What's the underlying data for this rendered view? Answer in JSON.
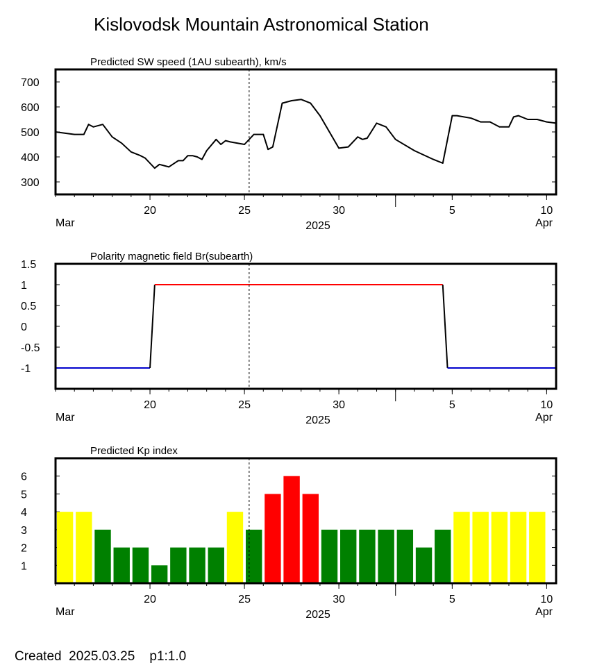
{
  "title": "Kislovodsk Mountain Astronomical Station",
  "footer": {
    "created_label": "Created",
    "date": "2025.03.25",
    "page": "p1:1.0"
  },
  "x_axis": {
    "year_label": "2025",
    "month_start_label": "Mar",
    "month_end_label": "Apr",
    "range": [
      "2025-03-15",
      "2025-04-10T12:00"
    ],
    "major_ticks": [
      {
        "date": "2025-03-20",
        "label": "20"
      },
      {
        "date": "2025-03-25",
        "label": "25"
      },
      {
        "date": "2025-03-30",
        "label": "30"
      },
      {
        "date": "2025-04-05",
        "label": "5"
      },
      {
        "date": "2025-04-10",
        "label": "10"
      }
    ],
    "separator_date": "2025-04-02",
    "current_date_marker": "2025-03-25T06:00"
  },
  "chart_data": [
    {
      "type": "line",
      "title": "Predicted SW speed (1AU subearth), km/s",
      "ylim": [
        250,
        750
      ],
      "yticks": [
        300,
        400,
        500,
        600,
        700
      ],
      "color": "#000000",
      "x": [
        "2025-03-15",
        "2025-03-16",
        "2025-03-16T12:00",
        "2025-03-16T18:00",
        "2025-03-17",
        "2025-03-17T12:00",
        "2025-03-18",
        "2025-03-18T12:00",
        "2025-03-19",
        "2025-03-19T12:00",
        "2025-03-19T18:00",
        "2025-03-20",
        "2025-03-20T06:00",
        "2025-03-20T12:00",
        "2025-03-21",
        "2025-03-21T12:00",
        "2025-03-21T18:00",
        "2025-03-22",
        "2025-03-22T06:00",
        "2025-03-22T12:00",
        "2025-03-22T18:00",
        "2025-03-23",
        "2025-03-23T12:00",
        "2025-03-23T18:00",
        "2025-03-24",
        "2025-03-24T06:00",
        "2025-03-25",
        "2025-03-25T06:00",
        "2025-03-25T12:00",
        "2025-03-26",
        "2025-03-26T06:00",
        "2025-03-26T12:00",
        "2025-03-27",
        "2025-03-27T12:00",
        "2025-03-28",
        "2025-03-28T12:00",
        "2025-03-29",
        "2025-03-29T12:00",
        "2025-03-30",
        "2025-03-30T12:00",
        "2025-03-31",
        "2025-03-31T06:00",
        "2025-03-31T12:00",
        "2025-04-01",
        "2025-04-01T12:00",
        "2025-04-02",
        "2025-04-03",
        "2025-04-04",
        "2025-04-04T12:00",
        "2025-04-05",
        "2025-04-05T06:00",
        "2025-04-06",
        "2025-04-06T12:00",
        "2025-04-07",
        "2025-04-07T12:00",
        "2025-04-08",
        "2025-04-08T06:00",
        "2025-04-08T12:00",
        "2025-04-09",
        "2025-04-09T12:00",
        "2025-04-10",
        "2025-04-10T12:00"
      ],
      "y": [
        500,
        490,
        490,
        530,
        520,
        530,
        480,
        455,
        420,
        405,
        395,
        375,
        355,
        370,
        360,
        385,
        385,
        405,
        405,
        400,
        390,
        425,
        470,
        450,
        465,
        460,
        450,
        470,
        490,
        490,
        430,
        440,
        615,
        625,
        630,
        615,
        565,
        500,
        435,
        440,
        480,
        470,
        475,
        535,
        520,
        470,
        425,
        390,
        375,
        565,
        565,
        555,
        540,
        540,
        520,
        520,
        560,
        565,
        550,
        550,
        540,
        535
      ]
    },
    {
      "type": "line",
      "title": "Polarity magnetic field  Br(subearth)",
      "ylim": [
        -1.5,
        1.5
      ],
      "yticks": [
        -1,
        -0.5,
        0,
        0.5,
        1,
        1.5
      ],
      "ytick_labels": [
        "-1",
        "-0.5",
        "0",
        "0.5",
        "1",
        "1.5"
      ],
      "positive_color": "#ff0000",
      "negative_color": "#0000cc",
      "transition_color": "#000000",
      "x": [
        "2025-03-15",
        "2025-03-20",
        "2025-03-20T06:00",
        "2025-04-04T12:00",
        "2025-04-04T18:00",
        "2025-04-10T12:00"
      ],
      "y": [
        -1,
        -1,
        1,
        1,
        -1,
        -1
      ]
    },
    {
      "type": "bar",
      "title": "Predicted Kp index",
      "ylim": [
        0,
        7
      ],
      "yticks": [
        1,
        2,
        3,
        4,
        5,
        6
      ],
      "categories": [
        "2025-03-15",
        "2025-03-16",
        "2025-03-17",
        "2025-03-18",
        "2025-03-19",
        "2025-03-20",
        "2025-03-21",
        "2025-03-22",
        "2025-03-23",
        "2025-03-24",
        "2025-03-25",
        "2025-03-26",
        "2025-03-27",
        "2025-03-28",
        "2025-03-29",
        "2025-03-30",
        "2025-03-31",
        "2025-04-01",
        "2025-04-02",
        "2025-04-03",
        "2025-04-04",
        "2025-04-05",
        "2025-04-06",
        "2025-04-07",
        "2025-04-08",
        "2025-04-09"
      ],
      "values": [
        4,
        4,
        3,
        2,
        2,
        1,
        2,
        2,
        2,
        4,
        3,
        5,
        6,
        5,
        3,
        3,
        3,
        3,
        3,
        2,
        3,
        4,
        4,
        4,
        4,
        4
      ],
      "colors": [
        "#ffff00",
        "#ffff00",
        "#008000",
        "#008000",
        "#008000",
        "#008000",
        "#008000",
        "#008000",
        "#008000",
        "#ffff00",
        "#008000",
        "#ff0000",
        "#ff0000",
        "#ff0000",
        "#008000",
        "#008000",
        "#008000",
        "#008000",
        "#008000",
        "#008000",
        "#008000",
        "#ffff00",
        "#ffff00",
        "#ffff00",
        "#ffff00",
        "#ffff00"
      ]
    }
  ]
}
